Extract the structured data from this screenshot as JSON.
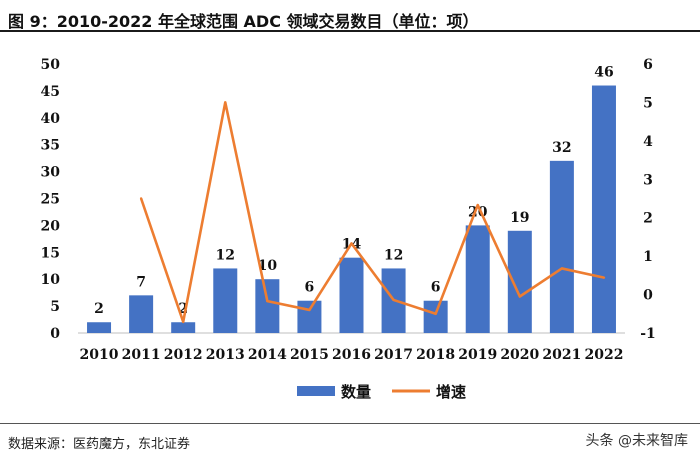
{
  "figure": {
    "title": "图 9：2010-2022 年全球范围 ADC 领域交易数目（单位：项）",
    "source": "数据来源：医药魔方，东北证券",
    "watermark": "头条 @未来智库"
  },
  "colors": {
    "bar": "#4472C4",
    "line": "#ED7D31",
    "text": "#111111"
  },
  "chart_data": {
    "type": "bar",
    "title": "2010-2022 年全球范围 ADC 领域交易数目（单位：项）",
    "xlabel": "",
    "ylabel": "",
    "categories": [
      "2010",
      "2011",
      "2012",
      "2013",
      "2014",
      "2015",
      "2016",
      "2017",
      "2018",
      "2019",
      "2020",
      "2021",
      "2022"
    ],
    "series": [
      {
        "name": "数量",
        "type": "bar",
        "axis": "left",
        "values": [
          2,
          7,
          2,
          12,
          10,
          6,
          14,
          12,
          6,
          20,
          19,
          32,
          46
        ]
      },
      {
        "name": "增速",
        "type": "line",
        "axis": "right",
        "values": [
          null,
          2.5,
          -0.71,
          5.0,
          -0.17,
          -0.4,
          1.33,
          -0.14,
          -0.5,
          2.33,
          -0.05,
          0.68,
          0.44
        ]
      }
    ],
    "ylim": [
      0,
      50
    ],
    "yticks": [
      0,
      5,
      10,
      15,
      20,
      25,
      30,
      35,
      40,
      45,
      50
    ],
    "y2lim": [
      -1,
      6
    ],
    "y2ticks": [
      -1,
      0,
      1,
      2,
      3,
      4,
      5,
      6
    ],
    "data_labels": [
      "2",
      "7",
      "2",
      "12",
      "10",
      "6",
      "14",
      "12",
      "6",
      "20",
      "19",
      "32",
      "46"
    ],
    "legend": [
      "数量",
      "增速"
    ],
    "legend_position": "bottom",
    "grid": false
  }
}
